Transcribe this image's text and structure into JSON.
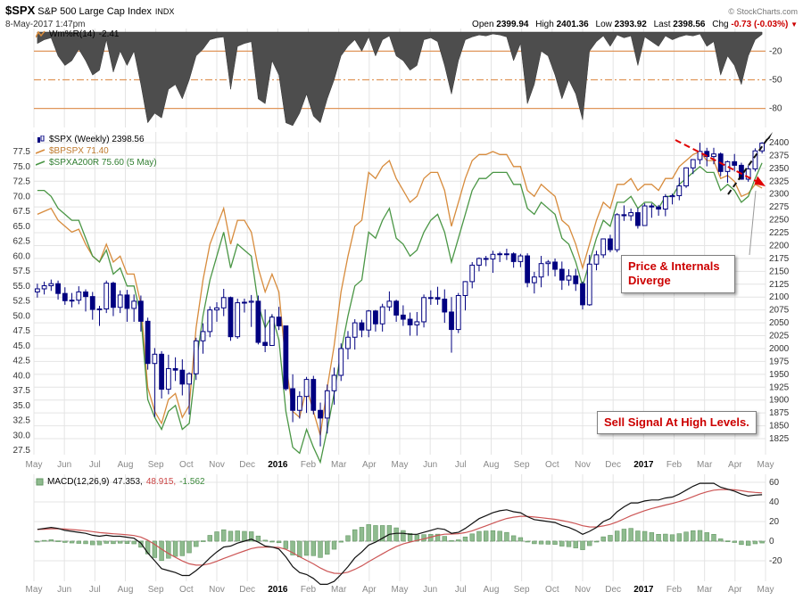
{
  "header": {
    "symbol": "$SPX",
    "name": "S&P 500 Large Cap Index",
    "exchange": "INDX",
    "datetime": "8-May-2017 1:47pm",
    "copyright": "© StockCharts.com",
    "quote": {
      "open_label": "Open",
      "open_value": "2399.94",
      "high_label": "High",
      "high_value": "2401.36",
      "low_label": "Low",
      "low_value": "2393.92",
      "last_label": "Last",
      "last_value": "2398.56",
      "chg_label": "Chg",
      "chg_value": "-0.73 (-0.03%)",
      "direction_icon": "▼"
    }
  },
  "wmr_panel": {
    "label": "Wm%R(14)",
    "value": "-2.41",
    "axis_labels": [
      "-20",
      "-50",
      "-80"
    ]
  },
  "main_panel": {
    "legend_spx": "$SPX (Weekly) 2398.56",
    "legend_bpspx": "$BPSPX 71.40",
    "legend_spxa200r": "$SPXA200R 75.60 (5 May)",
    "left_axis": [
      "77.5",
      "75.0",
      "72.5",
      "70.0",
      "67.5",
      "65.0",
      "62.5",
      "60.0",
      "57.5",
      "55.0",
      "52.5",
      "50.0",
      "47.5",
      "45.0",
      "42.5",
      "40.0",
      "37.5",
      "35.0",
      "32.5",
      "30.0",
      "27.5"
    ],
    "right_axis": [
      "2400",
      "2375",
      "2350",
      "2325",
      "2300",
      "2275",
      "2250",
      "2225",
      "2200",
      "2175",
      "2150",
      "2125",
      "2100",
      "2075",
      "2050",
      "2025",
      "2000",
      "1975",
      "1950",
      "1925",
      "1900",
      "1875",
      "1850",
      "1825"
    ]
  },
  "macd_panel": {
    "label": "MACD(12,26,9)",
    "macd_value": "47.353,",
    "signal_value": "48.915,",
    "hist_value": "-1.562",
    "axis_labels": [
      "60",
      "40",
      "20",
      "0",
      "-20"
    ]
  },
  "annotations": {
    "diverge": "Price & Internals Diverge",
    "sell": "Sell Signal At High Levels."
  },
  "x_labels": [
    "May",
    "Jun",
    "Jul",
    "Aug",
    "Sep",
    "Oct",
    "Nov",
    "Dec",
    "2016",
    "Feb",
    "Mar",
    "Apr",
    "May",
    "Jun",
    "Jul",
    "Aug",
    "Sep",
    "Oct",
    "Nov",
    "Dec",
    "2017",
    "Feb",
    "Mar",
    "Apr",
    "May"
  ],
  "colors": {
    "navy": "#000080",
    "orange": "#d78b3c",
    "green": "#4a9645",
    "wmr_fill": "#4d4d4d",
    "wmr_level": "#e0965a",
    "macd": "#111111",
    "signal": "#cc5555",
    "hist_fill": "#8fbb8f",
    "hist_stroke": "#639763",
    "grid": "#e4e4e4",
    "axis": "#333333",
    "month": "#888888",
    "red": "#cc0000",
    "ann_red": "#e00000",
    "black": "#111111"
  },
  "chart_data": {
    "type": "candlestick",
    "title": "$SPX (Weekly) with $BPSPX and $SPXA200R overlays, Wm%R(14) above, MACD(12,26,9) below",
    "timeframe": "weekly, May 2015 - May 2017",
    "price_axis": {
      "min": 1825,
      "max": 2400,
      "step": 25,
      "side": "right"
    },
    "percent_axis": {
      "min": 27.5,
      "max": 77.5,
      "step": 2.5,
      "side": "left"
    },
    "candles_ohlc": [
      [
        2110,
        2126,
        2099,
        2116
      ],
      [
        2116,
        2130,
        2105,
        2122
      ],
      [
        2122,
        2134,
        2112,
        2126
      ],
      [
        2126,
        2132,
        2095,
        2107
      ],
      [
        2107,
        2119,
        2085,
        2093
      ],
      [
        2093,
        2108,
        2080,
        2094
      ],
      [
        2094,
        2121,
        2086,
        2110
      ],
      [
        2110,
        2115,
        2072,
        2101
      ],
      [
        2101,
        2110,
        2056,
        2076
      ],
      [
        2076,
        2083,
        2044,
        2077
      ],
      [
        2077,
        2132,
        2069,
        2127
      ],
      [
        2127,
        2130,
        2063,
        2080
      ],
      [
        2080,
        2113,
        2069,
        2104
      ],
      [
        2104,
        2114,
        2052,
        2078
      ],
      [
        2078,
        2105,
        2052,
        2092
      ],
      [
        2092,
        2103,
        2033,
        2053
      ],
      [
        2053,
        2060,
        1959,
        1971
      ],
      [
        1971,
        2001,
        1867,
        1989
      ],
      [
        1989,
        1995,
        1903,
        1921
      ],
      [
        1921,
        1988,
        1911,
        1961
      ],
      [
        1961,
        1983,
        1937,
        1958
      ],
      [
        1958,
        1979,
        1909,
        1931
      ],
      [
        1931,
        1954,
        1872,
        1951
      ],
      [
        1951,
        2021,
        1939,
        2015
      ],
      [
        2015,
        2049,
        1990,
        2033
      ],
      [
        2033,
        2082,
        2022,
        2075
      ],
      [
        2075,
        2090,
        2052,
        2079
      ],
      [
        2079,
        2116,
        2063,
        2099
      ],
      [
        2099,
        2101,
        2015,
        2023
      ],
      [
        2023,
        2097,
        2019,
        2089
      ],
      [
        2089,
        2097,
        2070,
        2090
      ],
      [
        2090,
        2104,
        2042,
        2092
      ],
      [
        2092,
        2103,
        2008,
        2012
      ],
      [
        2012,
        2076,
        1993,
        2006
      ],
      [
        2006,
        2067,
        2005,
        2061
      ],
      [
        2061,
        2081,
        2036,
        2044
      ],
      [
        2044,
        2044,
        1918,
        1922
      ],
      [
        1922,
        1950,
        1857,
        1880
      ],
      [
        1880,
        1917,
        1864,
        1907
      ],
      [
        1907,
        1945,
        1875,
        1940
      ],
      [
        1940,
        1947,
        1872,
        1880
      ],
      [
        1880,
        1895,
        1810,
        1865
      ],
      [
        1865,
        1930,
        1835,
        1918
      ],
      [
        1918,
        1963,
        1891,
        1948
      ],
      [
        1948,
        2010,
        1937,
        2000
      ],
      [
        2000,
        2034,
        1979,
        2022
      ],
      [
        2022,
        2057,
        1998,
        2050
      ],
      [
        2050,
        2056,
        2022,
        2036
      ],
      [
        2036,
        2075,
        2022,
        2073
      ],
      [
        2073,
        2075,
        2033,
        2048
      ],
      [
        2048,
        2087,
        2033,
        2081
      ],
      [
        2081,
        2111,
        2073,
        2092
      ],
      [
        2092,
        2095,
        2052,
        2065
      ],
      [
        2065,
        2084,
        2044,
        2057
      ],
      [
        2057,
        2070,
        2025,
        2046
      ],
      [
        2046,
        2071,
        2025,
        2052
      ],
      [
        2052,
        2105,
        2041,
        2099
      ],
      [
        2099,
        2113,
        2085,
        2099
      ],
      [
        2099,
        2120,
        2085,
        2096
      ],
      [
        2096,
        2115,
        2050,
        2071
      ],
      [
        2071,
        2100,
        1992,
        2037
      ],
      [
        2037,
        2108,
        2030,
        2103
      ],
      [
        2103,
        2131,
        2074,
        2130
      ],
      [
        2130,
        2168,
        2117,
        2162
      ],
      [
        2162,
        2177,
        2150,
        2175
      ],
      [
        2175,
        2180,
        2160,
        2174
      ],
      [
        2174,
        2190,
        2147,
        2183
      ],
      [
        2183,
        2188,
        2168,
        2184
      ],
      [
        2184,
        2194,
        2172,
        2184
      ],
      [
        2184,
        2187,
        2157,
        2169
      ],
      [
        2169,
        2184,
        2158,
        2180
      ],
      [
        2180,
        2185,
        2119,
        2128
      ],
      [
        2128,
        2149,
        2107,
        2139
      ],
      [
        2139,
        2180,
        2119,
        2165
      ],
      [
        2165,
        2172,
        2141,
        2168
      ],
      [
        2168,
        2175,
        2140,
        2154
      ],
      [
        2154,
        2169,
        2114,
        2133
      ],
      [
        2133,
        2154,
        2122,
        2141
      ],
      [
        2141,
        2155,
        2112,
        2126
      ],
      [
        2126,
        2130,
        2076,
        2085
      ],
      [
        2085,
        2182,
        2083,
        2164
      ],
      [
        2164,
        2190,
        2152,
        2182
      ],
      [
        2182,
        2213,
        2176,
        2213
      ],
      [
        2213,
        2221,
        2187,
        2192
      ],
      [
        2192,
        2263,
        2187,
        2260
      ],
      [
        2260,
        2278,
        2248,
        2258
      ],
      [
        2258,
        2272,
        2248,
        2264
      ],
      [
        2264,
        2273,
        2233,
        2239
      ],
      [
        2239,
        2282,
        2239,
        2277
      ],
      [
        2277,
        2282,
        2254,
        2275
      ],
      [
        2275,
        2279,
        2258,
        2271
      ],
      [
        2271,
        2300,
        2257,
        2295
      ],
      [
        2295,
        2301,
        2280,
        2297
      ],
      [
        2297,
        2332,
        2288,
        2316
      ],
      [
        2316,
        2352,
        2312,
        2351
      ],
      [
        2351,
        2368,
        2339,
        2367
      ],
      [
        2367,
        2400,
        2358,
        2383
      ],
      [
        2383,
        2390,
        2354,
        2373
      ],
      [
        2373,
        2390,
        2358,
        2378
      ],
      [
        2378,
        2381,
        2335,
        2344
      ],
      [
        2344,
        2365,
        2322,
        2363
      ],
      [
        2363,
        2378,
        2344,
        2356
      ],
      [
        2356,
        2361,
        2328,
        2329
      ],
      [
        2329,
        2356,
        2324,
        2349
      ],
      [
        2349,
        2389,
        2344,
        2384
      ],
      [
        2384,
        2401,
        2379,
        2399
      ]
    ],
    "overlays": [
      {
        "name": "$BPSPX",
        "axis": "percent",
        "type": "line",
        "last": 71.4,
        "values": [
          67,
          67.5,
          68,
          66,
          65,
          64,
          64.5,
          62,
          60,
          59,
          62,
          59,
          60,
          57,
          57,
          52,
          38,
          34,
          32,
          36,
          37,
          33,
          35,
          48,
          56,
          62,
          65,
          68,
          62,
          66,
          66,
          64,
          58,
          54,
          57,
          54,
          42,
          34,
          33,
          38,
          34,
          30,
          38,
          45,
          54,
          60,
          65,
          66,
          74,
          73,
          75,
          76,
          73,
          71,
          69,
          70,
          73,
          74,
          74,
          71,
          65,
          69,
          73,
          76,
          77,
          77,
          77.5,
          77,
          77,
          75,
          75,
          71,
          70,
          72,
          71,
          70,
          66,
          65,
          62,
          58,
          62,
          66,
          69,
          68,
          72,
          72,
          73,
          71,
          72,
          72,
          71,
          73,
          73,
          75,
          76,
          77,
          77.5,
          76,
          76,
          73,
          73.5,
          72.5,
          70,
          70.5,
          72,
          71.4
        ]
      },
      {
        "name": "$SPXA200R",
        "axis": "percent",
        "type": "line",
        "last": 75.6,
        "values": [
          71,
          71,
          70,
          68,
          67,
          66,
          66,
          63,
          60,
          59,
          61,
          57,
          58,
          55,
          55,
          50,
          36,
          33,
          31,
          34,
          35,
          31,
          32,
          42,
          50,
          56,
          60,
          64,
          58,
          62,
          61,
          60,
          52,
          48,
          50,
          46,
          34,
          28,
          27,
          31,
          28,
          25.5,
          31,
          37,
          44,
          50,
          55,
          56,
          64,
          63,
          66,
          68,
          63,
          62,
          60,
          61,
          64,
          66,
          67,
          64,
          59,
          63,
          67,
          71,
          73,
          73,
          74,
          74,
          74,
          72,
          72,
          68,
          67,
          69,
          68,
          67,
          63,
          62,
          59,
          55,
          59,
          63,
          66,
          65,
          69,
          69,
          70,
          68,
          69,
          69,
          68,
          70,
          70,
          72,
          73,
          74,
          75,
          74,
          74,
          71,
          72,
          71,
          69,
          70,
          73,
          75.6
        ]
      }
    ],
    "wmr": {
      "name": "Wm%R(14)",
      "type": "area",
      "last": -2.41,
      "range": [
        0,
        -100
      ],
      "levels": [
        -20,
        -50,
        -80
      ],
      "values": [
        -12,
        -8,
        -6,
        -25,
        -35,
        -30,
        -18,
        -30,
        -45,
        -40,
        -8,
        -42,
        -20,
        -35,
        -20,
        -55,
        -95,
        -85,
        -90,
        -60,
        -55,
        -70,
        -50,
        -25,
        -18,
        -8,
        -6,
        -5,
        -60,
        -15,
        -12,
        -10,
        -70,
        -75,
        -30,
        -45,
        -95,
        -98,
        -85,
        -65,
        -88,
        -95,
        -70,
        -50,
        -25,
        -15,
        -8,
        -20,
        -5,
        -25,
        -8,
        -4,
        -25,
        -30,
        -40,
        -35,
        -8,
        -6,
        -10,
        -35,
        -65,
        -30,
        -8,
        -5,
        -3,
        -4,
        -2,
        -3,
        -5,
        -30,
        -12,
        -75,
        -55,
        -20,
        -25,
        -45,
        -70,
        -50,
        -65,
        -92,
        -20,
        -10,
        -4,
        -15,
        -3,
        -6,
        -4,
        -35,
        -5,
        -10,
        -15,
        -4,
        -8,
        -5,
        -3,
        -4,
        -2,
        -15,
        -10,
        -45,
        -25,
        -35,
        -55,
        -25,
        -8,
        -2.41
      ]
    },
    "macd": {
      "name": "MACD(12,26,9)",
      "type": "line+histogram",
      "last_macd": 47.353,
      "last_signal": 48.915,
      "last_hist": -1.562,
      "signal_period": 9,
      "axis_ticks": [
        60,
        40,
        20,
        0,
        -20
      ],
      "values": [
        12,
        13,
        14,
        13,
        11,
        10,
        9,
        8,
        6,
        5,
        6,
        5,
        5,
        4,
        3,
        -2,
        -12,
        -20,
        -28,
        -30,
        -32,
        -35,
        -35,
        -30,
        -24,
        -17,
        -11,
        -6,
        -5,
        -2,
        0,
        2,
        -1,
        -5,
        -6,
        -8,
        -16,
        -26,
        -32,
        -34,
        -38,
        -44,
        -44,
        -41,
        -34,
        -26,
        -17,
        -11,
        -4,
        -1,
        3,
        7,
        8,
        8,
        7,
        7,
        9,
        11,
        13,
        12,
        8,
        9,
        13,
        18,
        23,
        26,
        29,
        31,
        32,
        30,
        29,
        25,
        22,
        21,
        20,
        19,
        16,
        14,
        11,
        7,
        10,
        14,
        20,
        23,
        30,
        35,
        39,
        39,
        41,
        42,
        42,
        44,
        45,
        48,
        52,
        56,
        59,
        59,
        59,
        55,
        53,
        51,
        48,
        46,
        47,
        47.353
      ]
    }
  }
}
